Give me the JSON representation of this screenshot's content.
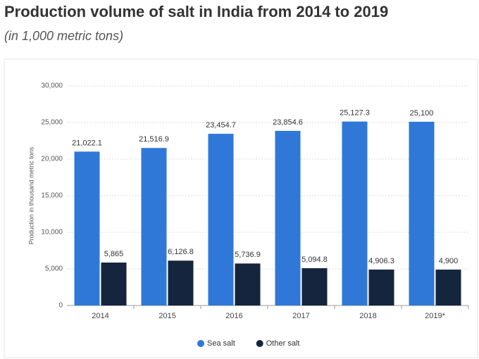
{
  "chart_data": {
    "type": "bar",
    "title": "Production volume of salt in India from 2014 to 2019",
    "subtitle": "(in 1,000 metric tons)",
    "y_label": "Production in thousand metric tons",
    "categories": [
      "2014",
      "2015",
      "2016",
      "2017",
      "2018",
      "2019*"
    ],
    "series": [
      {
        "name": "Sea salt",
        "color": "#2f78d8",
        "values": [
          21022.1,
          21516.9,
          23454.7,
          23854.6,
          25127.3,
          25100
        ],
        "value_labels": [
          "21,022.1",
          "21,516.9",
          "23,454.7",
          "23,854.6",
          "25,127.3",
          "25,100"
        ]
      },
      {
        "name": "Other salt",
        "color": "#14253d",
        "values": [
          5865,
          6126.8,
          5736.9,
          5094.8,
          4906.3,
          4900
        ],
        "value_labels": [
          "5,865",
          "6,126.8",
          "5,736.9",
          "5,094.8",
          "4,906.3",
          "4,900"
        ]
      }
    ],
    "ylim": [
      0,
      30000
    ],
    "yticks": [
      0,
      {
        "value": 5000,
        "label": "5,000"
      },
      {
        "value": 10000,
        "label": "10,000"
      },
      {
        "value": 15000,
        "label": "15,000"
      },
      {
        "value": 20000,
        "label": "20,000"
      },
      {
        "value": 25000,
        "label": "25,000"
      },
      {
        "value": 30000,
        "label": "30,000"
      }
    ],
    "grid": true,
    "legend": "bottom"
  }
}
